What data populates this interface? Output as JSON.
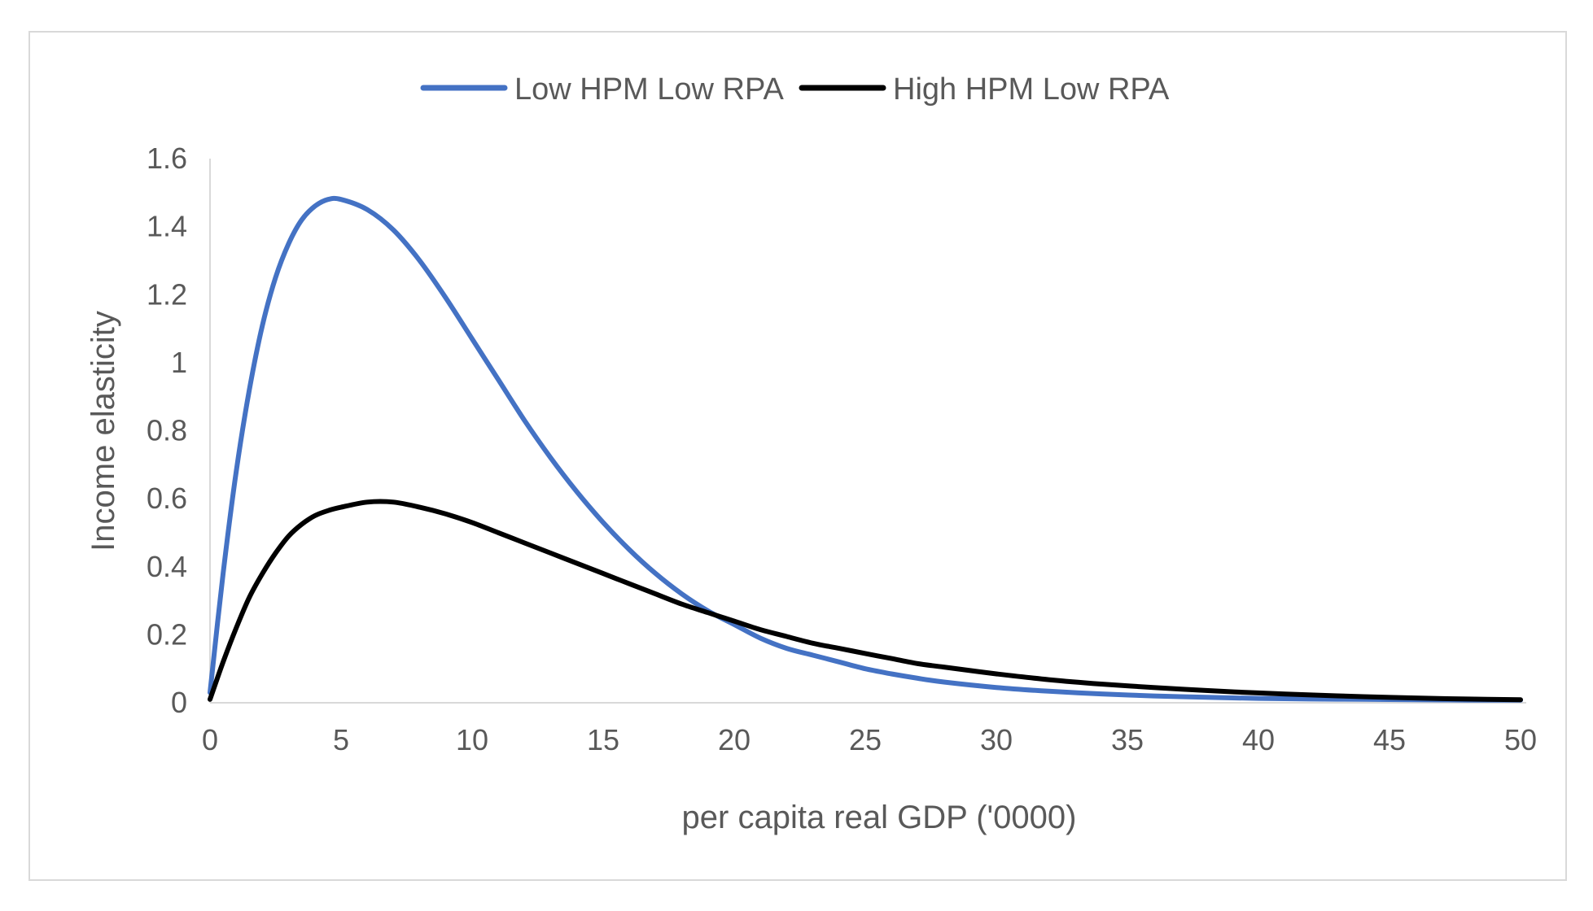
{
  "chart_data": {
    "type": "line",
    "title": "",
    "xlabel": "per capita real GDP ('0000)",
    "ylabel": "Income elasticity",
    "xlim": [
      0,
      50
    ],
    "ylim": [
      0,
      1.6
    ],
    "x_ticks": [
      0,
      5,
      10,
      15,
      20,
      25,
      30,
      35,
      40,
      45,
      50
    ],
    "x_tick_labels": [
      "0",
      "5",
      "10",
      "15",
      "20",
      "25",
      "30",
      "35",
      "40",
      "45",
      "50"
    ],
    "y_ticks": [
      0,
      0.2,
      0.4,
      0.6,
      0.8,
      1,
      1.2,
      1.4,
      1.6
    ],
    "y_tick_labels": [
      "0",
      "0.2",
      "0.4",
      "0.6",
      "0.8",
      "1",
      "1.2",
      "1.4",
      "1.6"
    ],
    "grid": false,
    "legend_position": "top-center",
    "x": [
      0,
      0.5,
      1,
      1.5,
      2,
      2.5,
      3,
      3.5,
      4,
      4.5,
      5,
      6,
      7,
      8,
      9,
      10,
      11,
      12,
      13,
      14,
      15,
      16,
      17,
      18,
      19,
      20,
      21,
      22,
      23,
      24,
      25,
      26,
      27,
      28,
      30,
      32,
      34,
      36,
      38,
      40,
      42,
      44,
      46,
      48,
      50
    ],
    "series": [
      {
        "name": "Low HPM Low RPA",
        "color": "#4472C4",
        "values": [
          0.03,
          0.38,
          0.68,
          0.92,
          1.11,
          1.25,
          1.35,
          1.42,
          1.46,
          1.48,
          1.48,
          1.45,
          1.39,
          1.3,
          1.19,
          1.07,
          0.95,
          0.83,
          0.72,
          0.62,
          0.53,
          0.45,
          0.38,
          0.32,
          0.27,
          0.23,
          0.19,
          0.16,
          0.14,
          0.12,
          0.1,
          0.085,
          0.072,
          0.061,
          0.045,
          0.034,
          0.026,
          0.02,
          0.016,
          0.013,
          0.011,
          0.01,
          0.009,
          0.008,
          0.008
        ]
      },
      {
        "name": "High HPM Low RPA",
        "color": "#000000",
        "values": [
          0.01,
          0.12,
          0.22,
          0.31,
          0.38,
          0.44,
          0.49,
          0.525,
          0.55,
          0.565,
          0.575,
          0.59,
          0.59,
          0.575,
          0.555,
          0.53,
          0.5,
          0.47,
          0.44,
          0.41,
          0.38,
          0.35,
          0.32,
          0.29,
          0.265,
          0.24,
          0.215,
          0.195,
          0.175,
          0.16,
          0.145,
          0.13,
          0.115,
          0.105,
          0.085,
          0.068,
          0.055,
          0.045,
          0.036,
          0.029,
          0.023,
          0.018,
          0.014,
          0.011,
          0.009
        ]
      }
    ]
  }
}
